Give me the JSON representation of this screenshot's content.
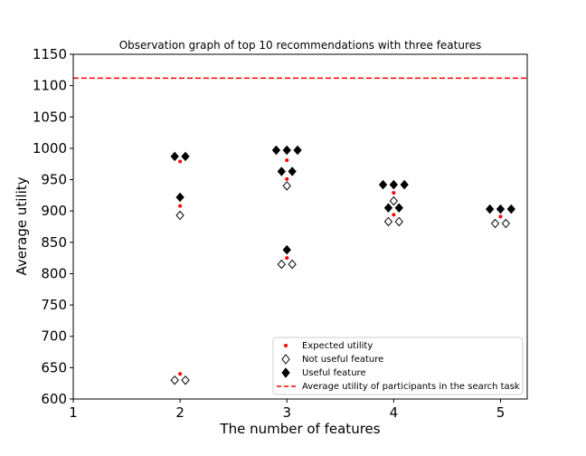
{
  "chart_data": {
    "type": "scatter",
    "title": "Observation graph of top 10 recommendations with three features",
    "xlabel": "The number of features",
    "ylabel": "Average utility",
    "xlim": [
      1,
      5.25
    ],
    "ylim": [
      600,
      1150
    ],
    "xticks": [
      "1",
      "2",
      "3",
      "4",
      "5"
    ],
    "yticks": [
      "600",
      "650",
      "700",
      "750",
      "800",
      "850",
      "900",
      "950",
      "1000",
      "1050",
      "1100",
      "1150"
    ],
    "grid": false,
    "legend_position": "lower-right",
    "reference_line": {
      "name": "Average utility of participants in the search task",
      "y": 1112,
      "color": "#ff0000",
      "style": "dashed"
    },
    "series": [
      {
        "name": "Expected utility",
        "marker": "dot",
        "color": "#ff0000",
        "points": [
          {
            "x": 2,
            "y": 979
          },
          {
            "x": 2,
            "y": 908
          },
          {
            "x": 2,
            "y": 640
          },
          {
            "x": 3,
            "y": 981
          },
          {
            "x": 3,
            "y": 951
          },
          {
            "x": 3,
            "y": 825
          },
          {
            "x": 4,
            "y": 929
          },
          {
            "x": 4,
            "y": 894
          },
          {
            "x": 5,
            "y": 891
          }
        ]
      },
      {
        "name": "Not useful feature",
        "marker": "diamond-open",
        "color": "#000000",
        "points": [
          {
            "x": 2,
            "y": 893
          },
          {
            "x": 1.95,
            "y": 630
          },
          {
            "x": 2.05,
            "y": 630
          },
          {
            "x": 3,
            "y": 940
          },
          {
            "x": 2.95,
            "y": 815
          },
          {
            "x": 3.05,
            "y": 815
          },
          {
            "x": 4,
            "y": 916
          },
          {
            "x": 3.95,
            "y": 883
          },
          {
            "x": 4.05,
            "y": 883
          },
          {
            "x": 4.95,
            "y": 880
          },
          {
            "x": 5.05,
            "y": 880
          }
        ]
      },
      {
        "name": "Useful feature",
        "marker": "diamond-filled",
        "color": "#000000",
        "points": [
          {
            "x": 1.95,
            "y": 987
          },
          {
            "x": 2.05,
            "y": 987
          },
          {
            "x": 2,
            "y": 922
          },
          {
            "x": 2.9,
            "y": 997
          },
          {
            "x": 3,
            "y": 997
          },
          {
            "x": 3.1,
            "y": 997
          },
          {
            "x": 2.95,
            "y": 963
          },
          {
            "x": 3.05,
            "y": 963
          },
          {
            "x": 3,
            "y": 838
          },
          {
            "x": 3.9,
            "y": 942
          },
          {
            "x": 4,
            "y": 942
          },
          {
            "x": 4.1,
            "y": 942
          },
          {
            "x": 3.95,
            "y": 905
          },
          {
            "x": 4.05,
            "y": 905
          },
          {
            "x": 4.9,
            "y": 903
          },
          {
            "x": 5,
            "y": 903
          },
          {
            "x": 5.1,
            "y": 903
          }
        ]
      }
    ]
  }
}
